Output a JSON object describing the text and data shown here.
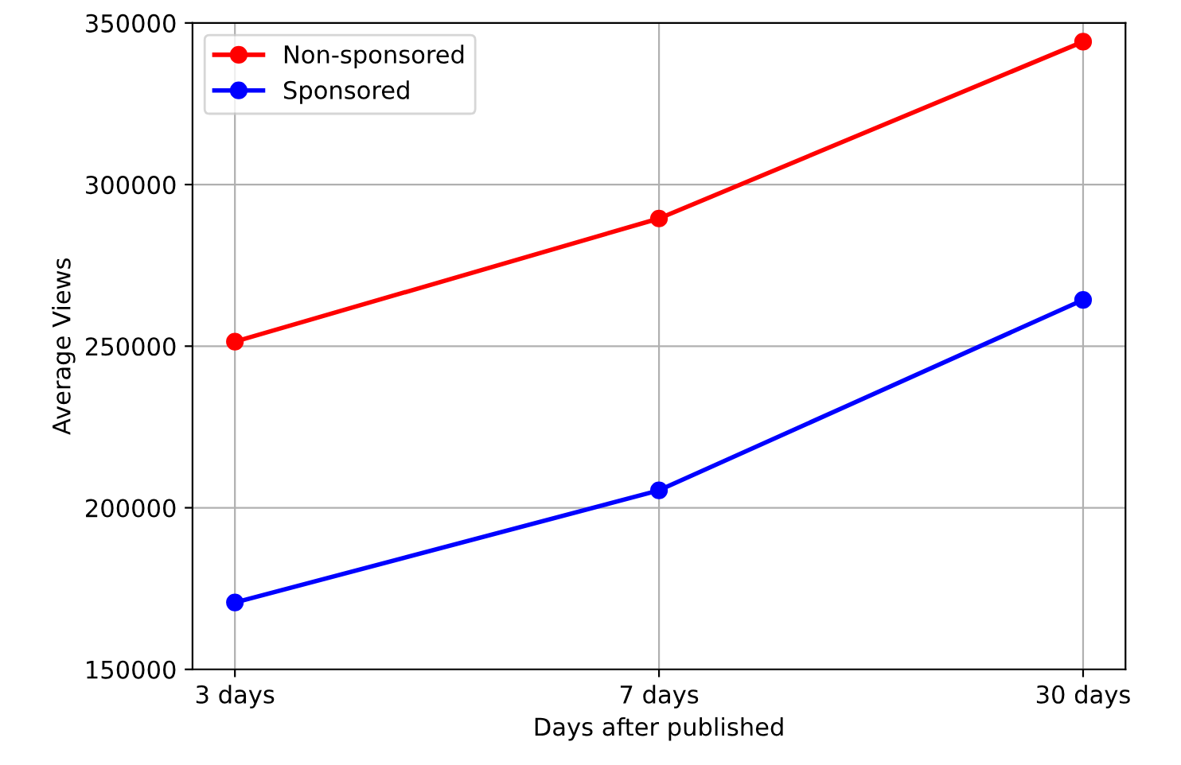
{
  "chart_data": {
    "type": "line",
    "xlabel": "Days after published",
    "ylabel": "Average Views",
    "categories": [
      "3 days",
      "7 days",
      "30 days"
    ],
    "series": [
      {
        "name": "Non-sponsored",
        "color": "#ff0000",
        "values": [
          251400,
          289500,
          344200
        ]
      },
      {
        "name": "Sponsored",
        "color": "#0000ff",
        "values": [
          170700,
          205400,
          264300
        ]
      }
    ],
    "ylim": [
      150000,
      350000
    ],
    "yticks": [
      150000,
      200000,
      250000,
      300000,
      350000
    ],
    "grid": true,
    "legend": "top left",
    "marker": "circle",
    "line_style": "solid"
  }
}
